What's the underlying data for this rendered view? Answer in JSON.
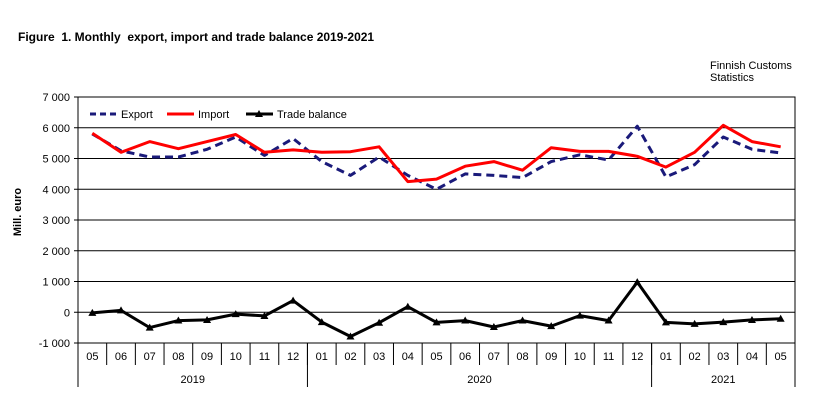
{
  "chart_data": {
    "type": "line",
    "title": "Figure  1. Monthly  export, import and trade balance 2019-2021",
    "source": [
      "Finnish Customs",
      "Statistics"
    ],
    "ylabel": "Mill. euro",
    "xlabel": "",
    "ylim": [
      -1000,
      7000
    ],
    "yticks": [
      -1000,
      0,
      1000,
      2000,
      3000,
      4000,
      5000,
      6000,
      7000
    ],
    "ytick_labels": [
      "-1 000",
      "0",
      "1 000",
      "2 000",
      "3 000",
      "4 000",
      "5 000",
      "6 000",
      "7 000"
    ],
    "grid": "horizontal",
    "legend_position": "top-left",
    "categories": [
      "05",
      "06",
      "07",
      "08",
      "09",
      "10",
      "11",
      "12",
      "01",
      "02",
      "03",
      "04",
      "05",
      "06",
      "07",
      "08",
      "09",
      "10",
      "11",
      "12",
      "01",
      "02",
      "03",
      "04",
      "05"
    ],
    "years": [
      {
        "label": "2019",
        "start": 0,
        "end": 7
      },
      {
        "label": "2020",
        "start": 8,
        "end": 19
      },
      {
        "label": "2021",
        "start": 20,
        "end": 24
      }
    ],
    "series": [
      {
        "name": "Export",
        "color": "#1a1a7a",
        "style": "dashed",
        "marker": "none",
        "values": [
          5800,
          5250,
          5050,
          5050,
          5300,
          5700,
          5100,
          5650,
          4900,
          4450,
          5050,
          4450,
          4000,
          4500,
          4450,
          4380,
          4900,
          5120,
          4950,
          6050,
          4400,
          4800,
          5700,
          5300,
          5180
        ]
      },
      {
        "name": "Import",
        "color": "#ff0000",
        "style": "solid",
        "marker": "none",
        "values": [
          5820,
          5200,
          5550,
          5320,
          5550,
          5780,
          5200,
          5280,
          5200,
          5220,
          5380,
          4250,
          4330,
          4750,
          4900,
          4620,
          5350,
          5230,
          5230,
          5070,
          4720,
          5200,
          6080,
          5550,
          5380
        ]
      },
      {
        "name": "Trade balance",
        "color": "#000000",
        "style": "solid",
        "marker": "triangle",
        "values": [
          -20,
          60,
          -500,
          -270,
          -250,
          -60,
          -120,
          380,
          -320,
          -790,
          -340,
          180,
          -330,
          -270,
          -480,
          -270,
          -450,
          -110,
          -270,
          980,
          -330,
          -380,
          -320,
          -250,
          -210
        ]
      }
    ]
  }
}
